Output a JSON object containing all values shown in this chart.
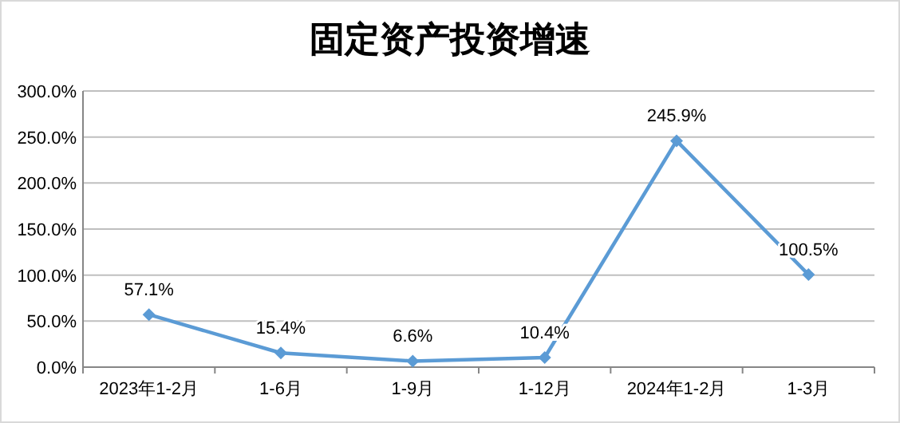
{
  "chart_data": {
    "type": "line",
    "title": "固定资产投资增速",
    "categories": [
      "2023年1-2月",
      "1-6月",
      "1-9月",
      "1-12月",
      "2024年1-2月",
      "1-3月"
    ],
    "series": [
      {
        "color": "#5b9bd5",
        "values": [
          57.1,
          15.4,
          6.6,
          10.4,
          245.9,
          100.5
        ],
        "value_labels": [
          "57.1%",
          "15.4%",
          "6.6%",
          "10.4%",
          "245.9%",
          "100.5%"
        ]
      }
    ],
    "ylim": [
      0,
      300
    ],
    "yticks": [
      {
        "value": 0,
        "label": "0.0%"
      },
      {
        "value": 50,
        "label": "50.0%"
      },
      {
        "value": 100,
        "label": "100.0%"
      },
      {
        "value": 150,
        "label": "150.0%"
      },
      {
        "value": 200,
        "label": "200.0%"
      },
      {
        "value": 250,
        "label": "250.0%"
      },
      {
        "value": 300,
        "label": "300.0%"
      }
    ],
    "grid": "y",
    "marker": "diamond",
    "line_style": "solid"
  }
}
